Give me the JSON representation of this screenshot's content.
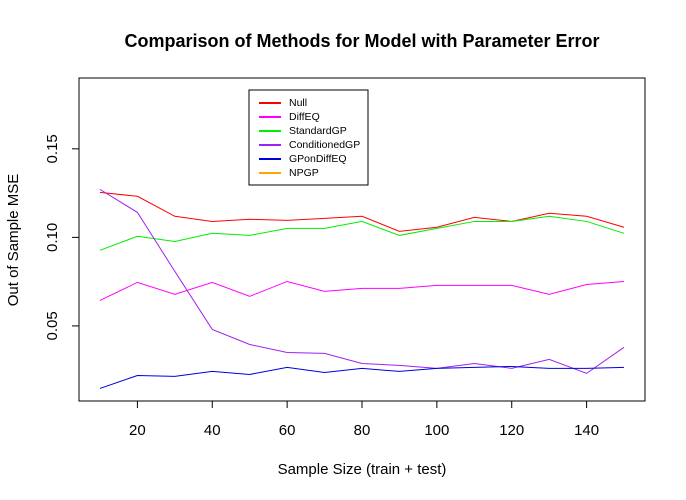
{
  "chart_data": {
    "type": "line",
    "title": "Comparison of Methods for Model with Parameter Error",
    "x_label": "Sample Size (train + test)",
    "y_label": "Out of Sample MSE",
    "x": [
      10,
      20,
      30,
      40,
      50,
      60,
      70,
      80,
      90,
      100,
      110,
      120,
      130,
      140,
      150
    ],
    "xlim": [
      4.4,
      155.6
    ],
    "xticks": [
      20,
      40,
      60,
      80,
      100,
      120,
      140
    ],
    "ylim": [
      0.0076,
      0.19
    ],
    "yticks": [
      {
        "value": 0.05,
        "label": "0.05"
      },
      {
        "value": 0.1,
        "label": "0.10"
      },
      {
        "value": 0.15,
        "label": "0.15"
      }
    ],
    "legend": "top-left",
    "series": [
      {
        "name": "Null",
        "color": "#ff0000",
        "values": [
          0.1254,
          0.1232,
          0.1119,
          0.109,
          0.1102,
          0.1096,
          0.1107,
          0.1119,
          0.1034,
          0.1057,
          0.1113,
          0.109,
          0.1136,
          0.1119,
          0.1057
        ]
      },
      {
        "name": "DiffEQ",
        "color": "#ff00ff",
        "values": [
          0.0644,
          0.0746,
          0.0678,
          0.0746,
          0.0667,
          0.0751,
          0.0695,
          0.0712,
          0.0712,
          0.0729,
          0.0729,
          0.0729,
          0.0678,
          0.0734,
          0.0751
        ]
      },
      {
        "name": "StandardGP",
        "color": "#00ee00",
        "values": [
          0.0927,
          0.1006,
          0.0977,
          0.1023,
          0.1011,
          0.1051,
          0.1051,
          0.109,
          0.1011,
          0.1051,
          0.109,
          0.109,
          0.1119,
          0.109,
          0.1023
        ]
      },
      {
        "name": "ConditionedGP",
        "color": "#a020f0",
        "values": [
          0.1271,
          0.1141,
          0.0808,
          0.048,
          0.0395,
          0.035,
          0.0345,
          0.0288,
          0.0277,
          0.026,
          0.0288,
          0.026,
          0.0311,
          0.0232,
          0.0379
        ]
      },
      {
        "name": "GPonDiffEQ",
        "color": "#0000dd",
        "values": [
          0.0147,
          0.022,
          0.0215,
          0.0243,
          0.0226,
          0.0266,
          0.0237,
          0.026,
          0.0243,
          0.026,
          0.0266,
          0.0271,
          0.026,
          0.026,
          0.0266
        ]
      },
      {
        "name": "NPGP",
        "color": "#ffa500",
        "values": [
          null,
          null,
          null,
          null,
          null,
          null,
          null,
          null,
          null,
          null,
          null,
          null,
          null,
          null,
          null
        ]
      }
    ]
  }
}
